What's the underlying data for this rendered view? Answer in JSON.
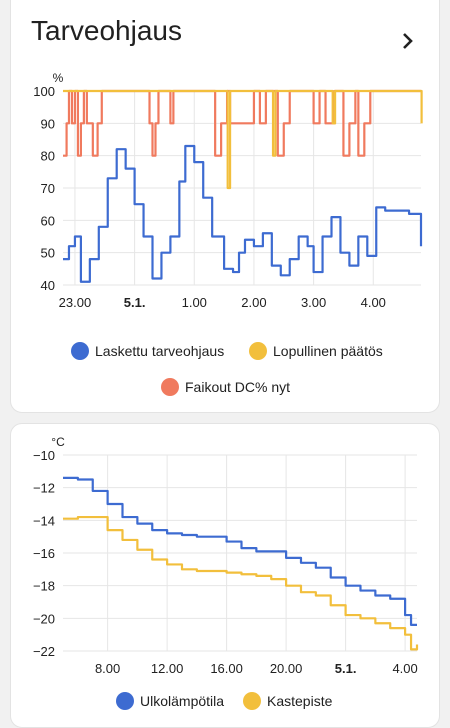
{
  "card1": {
    "title": "Tarveohjaus",
    "more_icon": "chevron-right-icon",
    "legend": [
      {
        "name": "Laskettu tarveohjaus",
        "color": "#3d6bd1"
      },
      {
        "name": "Lopullinen päätös",
        "color": "#f2bf3c"
      },
      {
        "name": "Faikout DC% nyt",
        "color": "#f07a5e"
      }
    ]
  },
  "card2": {
    "legend": [
      {
        "name": "Ulkolämpötila",
        "color": "#3d6bd1"
      },
      {
        "name": "Kastepiste",
        "color": "#f2bf3c"
      }
    ]
  },
  "chart_data": [
    {
      "type": "line",
      "ylabel": "%",
      "ylim": [
        40,
        100
      ],
      "yticks": [
        "40",
        "50",
        "60",
        "70",
        "80",
        "90",
        "100"
      ],
      "xticks": [
        "23.00",
        "5.1.",
        "1.00",
        "2.00",
        "3.00",
        "4.00"
      ],
      "xlim_hours": [
        22.8,
        28.8
      ],
      "grid": true,
      "legend_position": "bottom",
      "series": [
        {
          "name": "Laskettu tarveohjaus",
          "color": "#3d6bd1",
          "x": [
            22.8,
            22.9,
            23.0,
            23.1,
            23.25,
            23.4,
            23.55,
            23.7,
            23.85,
            24.0,
            24.15,
            24.3,
            24.45,
            24.6,
            24.75,
            24.85,
            25.0,
            25.15,
            25.3,
            25.5,
            25.65,
            25.75,
            25.85,
            26.0,
            26.15,
            26.3,
            26.45,
            26.6,
            26.75,
            26.9,
            27.0,
            27.15,
            27.3,
            27.45,
            27.6,
            27.75,
            27.9,
            28.05,
            28.2,
            28.4,
            28.6,
            28.8
          ],
          "y": [
            48,
            52,
            55,
            41,
            48,
            58,
            73,
            82,
            76,
            65,
            55,
            42,
            50,
            55,
            72,
            83,
            78,
            67,
            55,
            45,
            44,
            50,
            54,
            52,
            56,
            46,
            43,
            48,
            55,
            52,
            44,
            55,
            61,
            50,
            46,
            55,
            49,
            64,
            63,
            63,
            62,
            52
          ]
        },
        {
          "name": "Lopullinen päätös",
          "color": "#f2bf3c",
          "x": [
            22.8,
            25.55,
            25.56,
            25.6,
            26.3,
            26.32,
            26.36,
            27.3,
            27.32,
            27.36,
            28.8,
            28.81
          ],
          "y": [
            100,
            100,
            70,
            100,
            100,
            80,
            100,
            100,
            90,
            100,
            100,
            90
          ]
        },
        {
          "name": "Faikout DC% nyt",
          "color": "#f07a5e",
          "x": [
            22.8,
            22.86,
            22.9,
            22.95,
            23.0,
            23.05,
            23.1,
            23.15,
            23.2,
            23.3,
            23.38,
            23.45,
            23.55,
            24.25,
            24.3,
            24.35,
            24.4,
            24.5,
            24.6,
            24.65,
            24.7,
            24.8,
            25.3,
            25.35,
            25.45,
            25.55,
            25.6,
            26.0,
            26.1,
            26.2,
            26.4,
            26.5,
            26.6,
            27.0,
            27.1,
            27.2,
            27.35,
            27.5,
            27.6,
            27.7,
            27.75,
            27.85,
            27.95,
            28.8
          ],
          "y": [
            80,
            90,
            100,
            90,
            100,
            80,
            90,
            100,
            90,
            80,
            90,
            100,
            100,
            90,
            80,
            90,
            100,
            100,
            90,
            100,
            100,
            100,
            100,
            80,
            90,
            100,
            90,
            100,
            90,
            100,
            80,
            90,
            100,
            90,
            100,
            90,
            100,
            80,
            90,
            100,
            80,
            90,
            100,
            100
          ]
        }
      ]
    },
    {
      "type": "line",
      "ylabel": "°C",
      "ylim": [
        -22,
        -10
      ],
      "yticks": [
        "−22",
        "−20",
        "−18",
        "−16",
        "−14",
        "−12",
        "−10"
      ],
      "xticks": [
        "8.00",
        "12.00",
        "16.00",
        "20.00",
        "5.1.",
        "4.00"
      ],
      "xlim_hours": [
        5.0,
        28.8
      ],
      "grid": true,
      "legend_position": "bottom",
      "series": [
        {
          "name": "Ulkolämpötila",
          "color": "#3d6bd1",
          "x": [
            5.0,
            6.0,
            7.0,
            8.0,
            9.0,
            10.0,
            11.0,
            12.0,
            13.0,
            14.0,
            15.0,
            16.0,
            17.0,
            18.0,
            19.0,
            20.0,
            21.0,
            22.0,
            23.0,
            24.0,
            25.0,
            26.0,
            27.0,
            28.0,
            28.4,
            28.8
          ],
          "y": [
            -11.4,
            -11.5,
            -12.2,
            -13.0,
            -13.8,
            -14.2,
            -14.6,
            -14.8,
            -14.9,
            -15.0,
            -15.0,
            -15.3,
            -15.7,
            -15.9,
            -15.9,
            -16.3,
            -16.6,
            -16.9,
            -17.5,
            -18.0,
            -18.3,
            -18.6,
            -18.8,
            -19.8,
            -20.4,
            -20.4
          ]
        },
        {
          "name": "Kastepiste",
          "color": "#f2bf3c",
          "x": [
            5.0,
            6.0,
            7.0,
            8.0,
            9.0,
            10.0,
            11.0,
            12.0,
            13.0,
            14.0,
            15.0,
            16.0,
            17.0,
            18.0,
            19.0,
            20.0,
            21.0,
            22.0,
            23.0,
            24.0,
            25.0,
            26.0,
            27.0,
            28.0,
            28.4,
            28.8
          ],
          "y": [
            -13.9,
            -13.8,
            -13.8,
            -14.6,
            -15.2,
            -15.8,
            -16.4,
            -16.7,
            -17.0,
            -17.1,
            -17.1,
            -17.2,
            -17.3,
            -17.4,
            -17.6,
            -18.0,
            -18.4,
            -18.6,
            -19.2,
            -19.8,
            -20.0,
            -20.3,
            -20.6,
            -21.0,
            -21.9,
            -21.6
          ]
        }
      ]
    }
  ]
}
